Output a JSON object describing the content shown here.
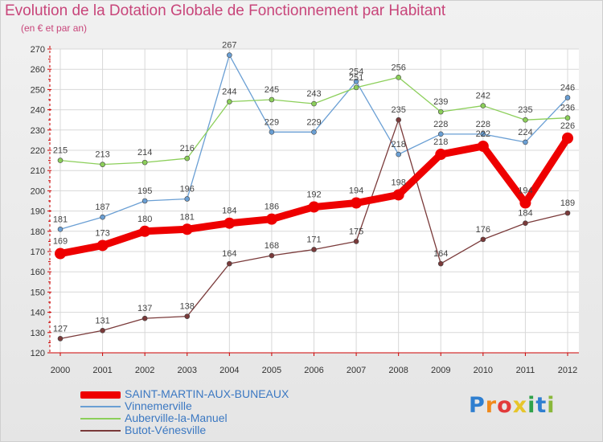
{
  "header": {
    "title": "Evolution de la Dotation Globale de Fonctionnement par Habitant",
    "subtitle": "(en € et par an)"
  },
  "colors": {
    "title": "#c8457a",
    "legend_text": "#3b78c2",
    "axis_text": "#333333"
  },
  "logo": {
    "text": "Proxiti",
    "letters": [
      "P",
      "r",
      "o",
      "x",
      "i",
      "t",
      "i"
    ],
    "letter_colors": [
      "#2f7fd0",
      "#f08a1c",
      "#e23a3a",
      "#e7c52a",
      "#2fa24a",
      "#2f7fd0",
      "#8ab83a"
    ]
  },
  "chart_data": {
    "type": "line",
    "title": "Evolution de la Dotation Globale de Fonctionnement par Habitant",
    "subtitle": "(en € et par an)",
    "x": [
      2000,
      2001,
      2002,
      2003,
      2004,
      2005,
      2006,
      2007,
      2008,
      2009,
      2010,
      2011,
      2012
    ],
    "x_tick_labels": [
      "2000",
      "2001",
      "2002",
      "2003",
      "2004",
      "2005",
      "2006",
      "2007",
      "2008",
      "2009",
      "2010",
      "2011",
      "2012"
    ],
    "ylim": [
      120,
      270
    ],
    "y_ticks": [
      120,
      130,
      140,
      150,
      160,
      170,
      180,
      190,
      200,
      210,
      220,
      230,
      240,
      250,
      260,
      270
    ],
    "grid": true,
    "legend_position": "bottom-left",
    "series": [
      {
        "name": "SAINT-MARTIN-AUX-BUNEAUX",
        "color": "#ee0000",
        "emphasis": true,
        "values": [
          169,
          173,
          180,
          181,
          184,
          186,
          192,
          194,
          198,
          218,
          222,
          194,
          226
        ]
      },
      {
        "name": "Vinnemerville",
        "color": "#6a9fd4",
        "emphasis": false,
        "values": [
          181,
          187,
          195,
          196,
          267,
          229,
          229,
          254,
          218,
          228,
          228,
          224,
          246
        ]
      },
      {
        "name": "Auberville-la-Manuel",
        "color": "#8ccf5a",
        "emphasis": false,
        "values": [
          215,
          213,
          214,
          216,
          244,
          245,
          243,
          251,
          256,
          239,
          242,
          235,
          236
        ]
      },
      {
        "name": "Butot-Vénesville",
        "color": "#7a3a3a",
        "emphasis": false,
        "values": [
          127,
          131,
          137,
          138,
          164,
          168,
          171,
          175,
          235,
          164,
          176,
          184,
          189
        ]
      }
    ]
  }
}
